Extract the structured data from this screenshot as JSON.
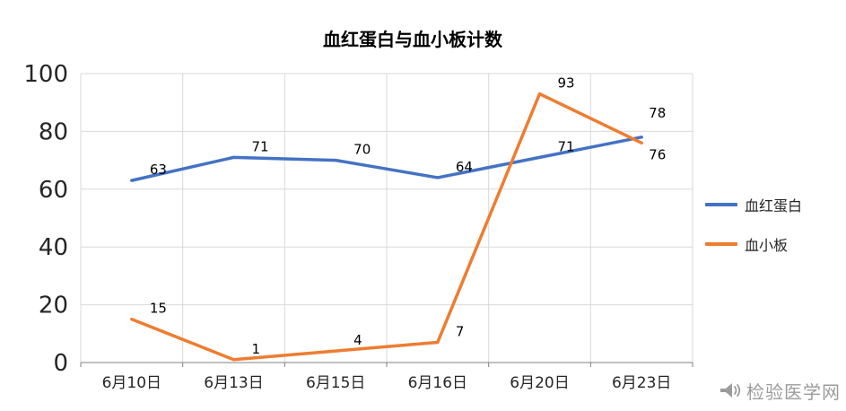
{
  "chart_data": {
    "type": "line",
    "title": "血红蛋白与血小板计数",
    "categories": [
      "6月10日",
      "6月13日",
      "6月15日",
      "6月16日",
      "6月20日",
      "6月23日"
    ],
    "series": [
      {
        "name": "血红蛋白",
        "color": "#4472C4",
        "values": [
          63,
          71,
          70,
          64,
          71,
          78
        ]
      },
      {
        "name": "血小板",
        "color": "#ED7D31",
        "values": [
          15,
          1,
          4,
          7,
          93,
          76
        ]
      }
    ],
    "xlabel": "",
    "ylabel": "",
    "ylim": [
      0,
      100
    ],
    "ytick_step": 20,
    "yticks": [
      0,
      20,
      40,
      60,
      80,
      100
    ],
    "grid": true,
    "legend_position": "right",
    "data_labels": true
  },
  "watermark": {
    "text": "检验医学网",
    "icon": "megaphone-icon"
  },
  "colors": {
    "gridline": "#d9d9d9",
    "axis": "#808080",
    "tick_label": "#262626",
    "data_label": "#000000"
  }
}
